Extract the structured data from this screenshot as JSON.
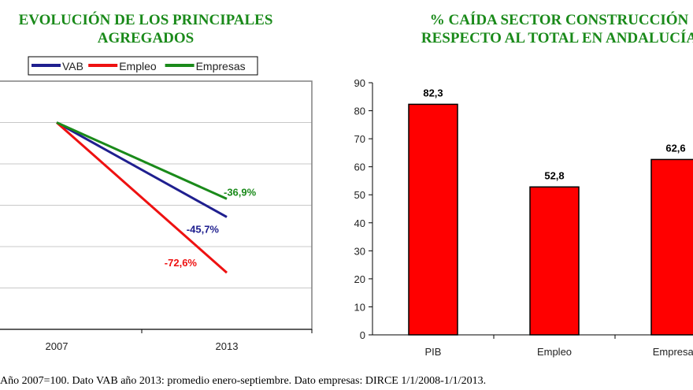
{
  "chart_data": [
    {
      "type": "line",
      "title": "EVOLUCIÓN DE LOS PRINCIPALES AGREGADOS",
      "title_lines": [
        "EVOLUCIÓN DE LOS PRINCIPALES",
        "AGREGADOS"
      ],
      "categories": [
        "2007",
        "2013"
      ],
      "ylim": [
        0,
        120
      ],
      "grid": true,
      "legend": "top",
      "series": [
        {
          "name": "VAB",
          "values": [
            100,
            54.3
          ],
          "color": "#1f1f8f",
          "label": "-45,7%"
        },
        {
          "name": "Empleo",
          "values": [
            100,
            27.4
          ],
          "color": "#ee1111",
          "label": "-72,6%"
        },
        {
          "name": "Empresas",
          "values": [
            100,
            63.1
          ],
          "color": "#1a8a1a",
          "label": "-36,9%"
        }
      ]
    },
    {
      "type": "bar",
      "title": "% CAÍDA SECTOR CONSTRUCCIÓN RESPECTO AL TOTAL EN ANDALUCÍA",
      "title_lines": [
        "% CAÍDA SECTOR CONSTRUCCIÓN",
        "RESPECTO AL TOTAL EN ANDALUCÍA"
      ],
      "categories": [
        "PIB",
        "Empleo",
        "Empresas"
      ],
      "values": [
        82.3,
        52.8,
        62.6
      ],
      "data_labels": [
        "82,3",
        "52,8",
        "62,6"
      ],
      "yticks": [
        0,
        10,
        20,
        30,
        40,
        50,
        60,
        70,
        80,
        90
      ],
      "ylim": [
        0,
        90
      ],
      "color": "#ff0000",
      "grid": false
    }
  ],
  "footnote": "Año 2007=100. Dato VAB año 2013: promedio enero-septiembre. Dato empresas: DIRCE 1/1/2008-1/1/2013."
}
